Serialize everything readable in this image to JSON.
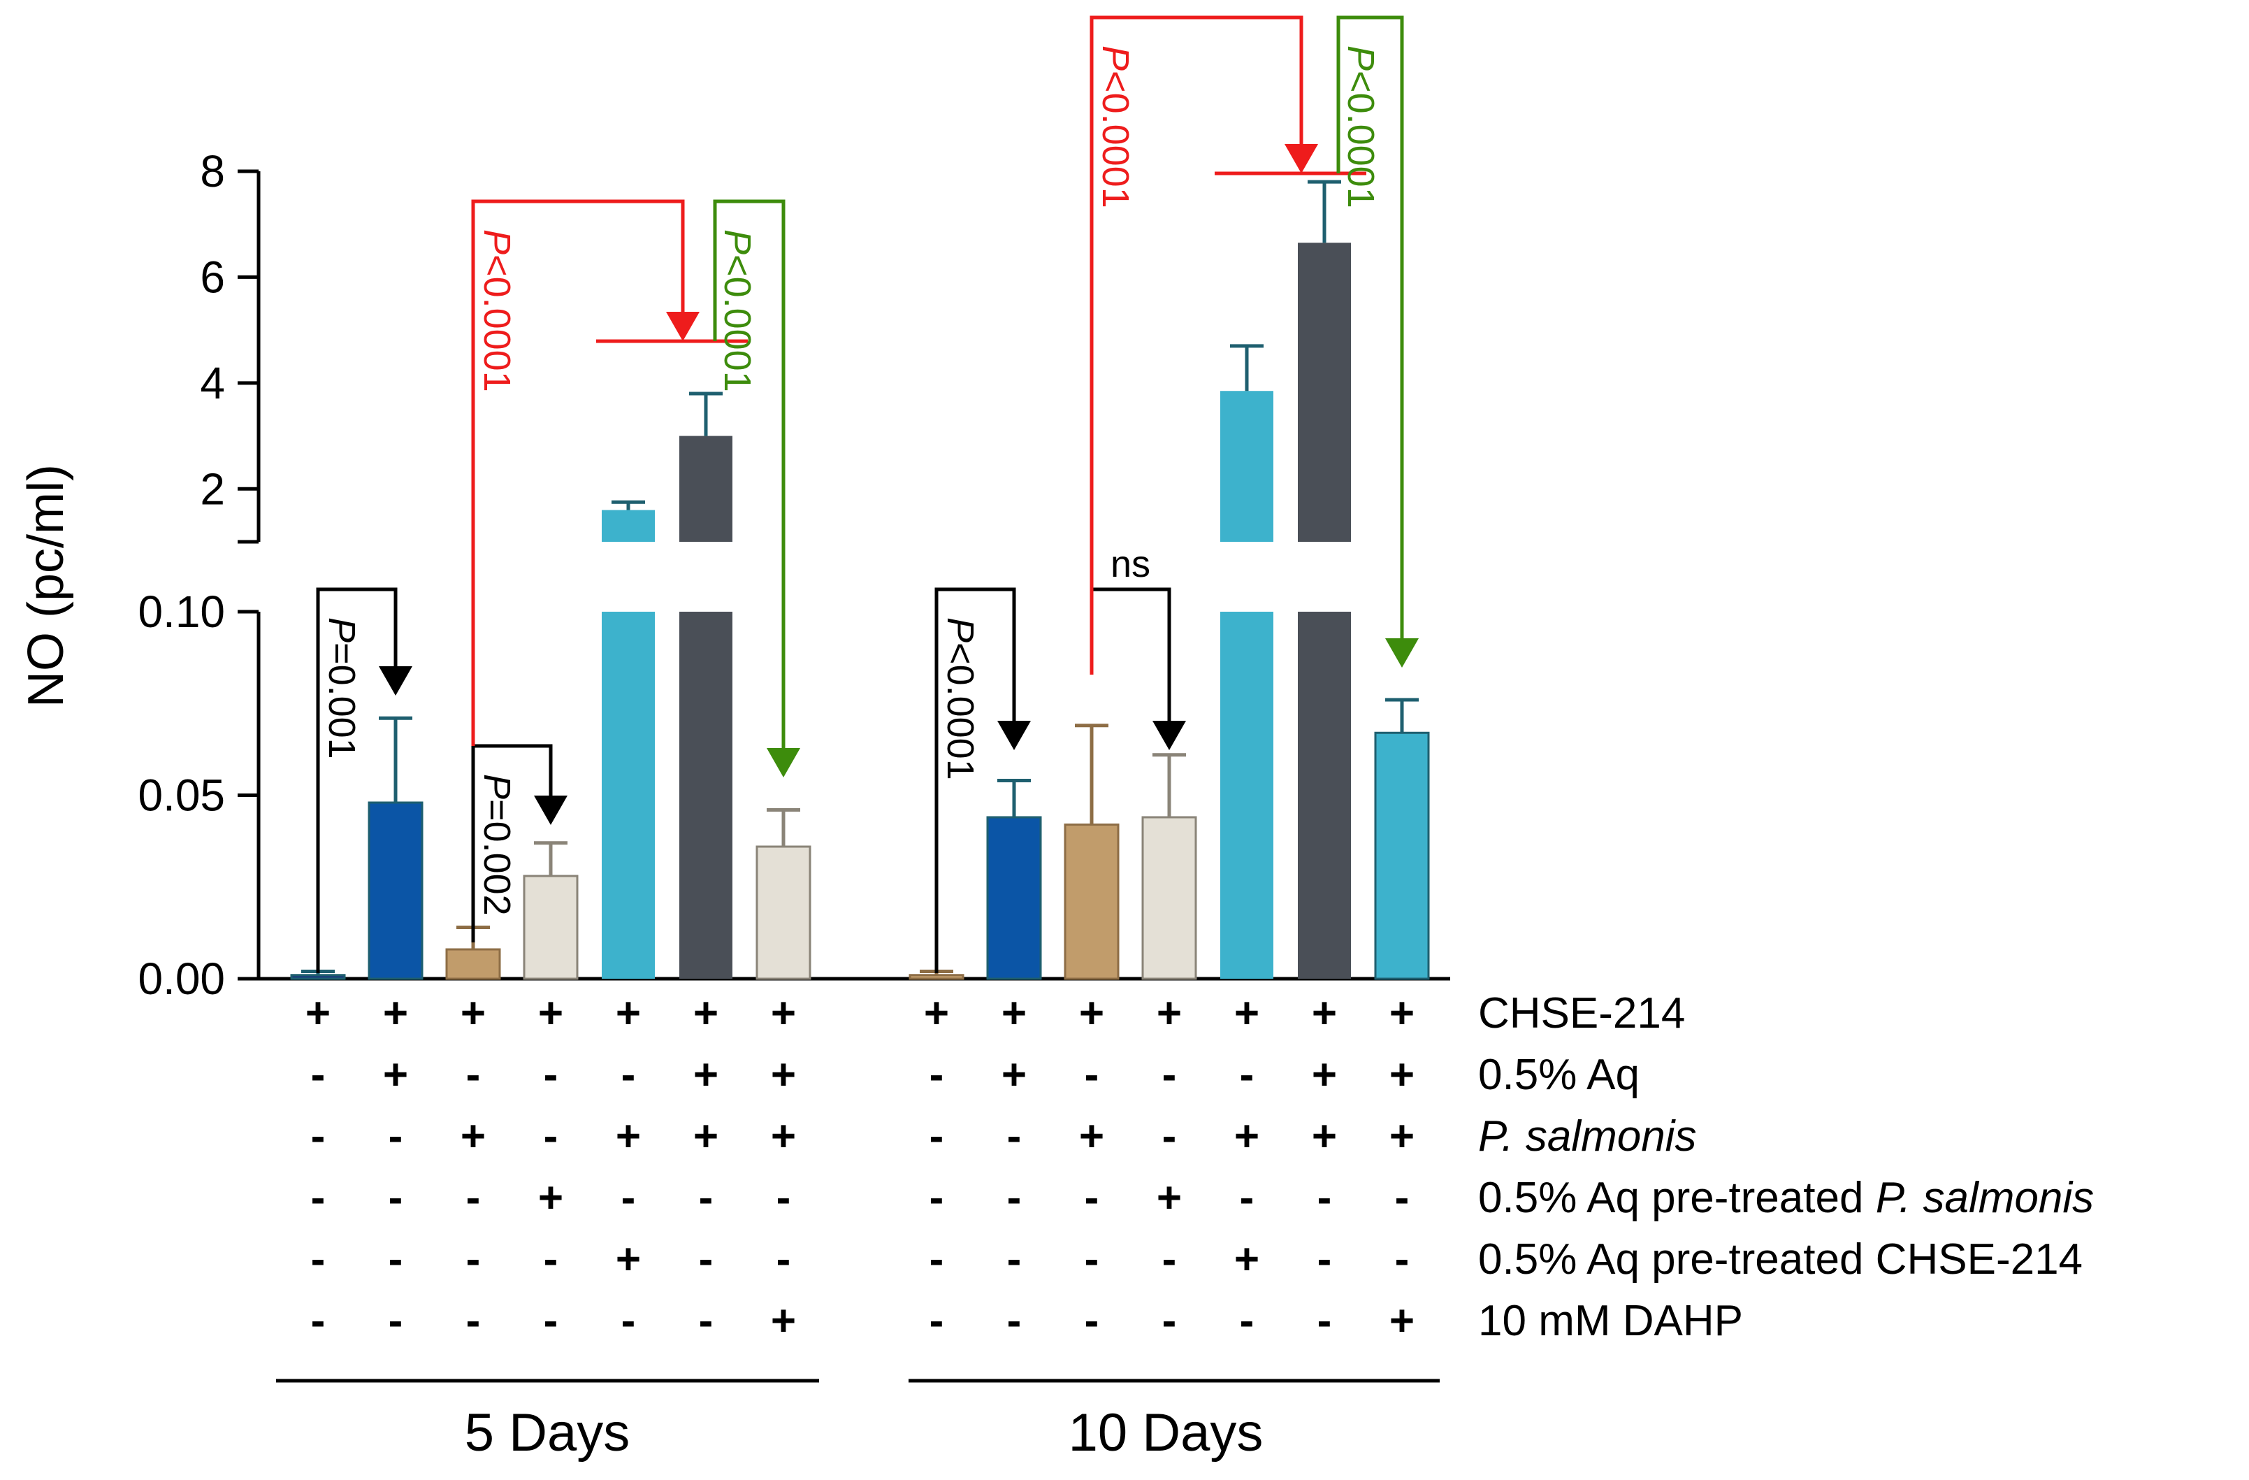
{
  "chart_data": {
    "type": "bar",
    "ylabel": "NO (pc/ml)",
    "y_axis": {
      "lower_segment": {
        "range": [
          0,
          0.1
        ],
        "ticks": [
          "0.00",
          "0.05",
          "0.10"
        ]
      },
      "upper_segment": {
        "range": [
          1,
          8
        ],
        "ticks": [
          "2",
          "4",
          "6",
          "8"
        ]
      }
    },
    "groups": [
      {
        "label": "5 Days",
        "bars": [
          {
            "value": 0.001,
            "error": 0.001,
            "color": "#1a3d7c"
          },
          {
            "value": 0.048,
            "error": 0.023,
            "color": "#0b55a6"
          },
          {
            "value": 0.008,
            "error": 0.006,
            "color": "#c19c6b"
          },
          {
            "value": 0.028,
            "error": 0.009,
            "color": "#e4e0d6"
          },
          {
            "value": 1.6,
            "error": 0.15,
            "color": "#3db2cc"
          },
          {
            "value": 3.0,
            "error": 0.8,
            "color": "#4a4f57"
          },
          {
            "value": 0.036,
            "error": 0.01,
            "color": "#e4e0d6"
          }
        ]
      },
      {
        "label": "10 Days",
        "bars": [
          {
            "value": 0.001,
            "error": 0.001,
            "color": "#c19c6b"
          },
          {
            "value": 0.044,
            "error": 0.01,
            "color": "#0b55a6"
          },
          {
            "value": 0.042,
            "error": 0.027,
            "color": "#c19c6b"
          },
          {
            "value": 0.044,
            "error": 0.017,
            "color": "#e4e0d6"
          },
          {
            "value": 3.85,
            "error": 0.85,
            "color": "#3db2cc"
          },
          {
            "value": 6.65,
            "error": 1.15,
            "color": "#4a4f57"
          },
          {
            "value": 0.067,
            "error": 0.009,
            "color": "#3db2cc"
          }
        ]
      }
    ],
    "conditions": [
      {
        "label": "CHSE-214",
        "italic_part": "",
        "values": [
          "+",
          "+",
          "+",
          "+",
          "+",
          "+",
          "+",
          "+",
          "+",
          "+",
          "+",
          "+",
          "+",
          "+"
        ]
      },
      {
        "label": "0.5% Aq",
        "italic_part": "",
        "values": [
          "-",
          "+",
          "-",
          "-",
          "-",
          "+",
          "+",
          "-",
          "+",
          "-",
          "-",
          "-",
          "+",
          "+"
        ]
      },
      {
        "label": "",
        "italic_part": "P. salmonis",
        "values": [
          "-",
          "-",
          "+",
          "-",
          "+",
          "+",
          "+",
          "-",
          "-",
          "+",
          "-",
          "+",
          "+",
          "+"
        ]
      },
      {
        "label": "0.5% Aq pre-treated ",
        "italic_part": "P. salmonis",
        "values": [
          "-",
          "-",
          "-",
          "+",
          "-",
          "-",
          "-",
          "-",
          "-",
          "-",
          "+",
          "-",
          "-",
          "-"
        ]
      },
      {
        "label": "0.5% Aq pre-treated CHSE-214",
        "italic_part": "",
        "values": [
          "-",
          "-",
          "-",
          "-",
          "+",
          "-",
          "-",
          "-",
          "-",
          "-",
          "-",
          "+",
          "-",
          "-"
        ]
      },
      {
        "label": "10 mM DAHP",
        "italic_part": "",
        "values": [
          "-",
          "-",
          "-",
          "-",
          "-",
          "-",
          "+",
          "-",
          "-",
          "-",
          "-",
          "-",
          "-",
          "+"
        ]
      }
    ],
    "comparisons": [
      {
        "from": 0,
        "to": 1,
        "p_prefix": "P",
        "p_suffix": "=0.001",
        "color": "#000000"
      },
      {
        "from": 2,
        "to": 3,
        "p_prefix": "P",
        "p_suffix": "=0.002",
        "color": "#000000"
      },
      {
        "from": 2,
        "to": 5,
        "p_prefix": "P",
        "p_suffix": "<0.0001",
        "color": "#ee1c1c"
      },
      {
        "from": 5,
        "to": 6,
        "p_prefix": "P",
        "p_suffix": "<0.0001",
        "color": "#3d8c0c"
      },
      {
        "from": 7,
        "to": 8,
        "p_prefix": "P",
        "p_suffix": "<0.0001",
        "color": "#000000"
      },
      {
        "from": 9,
        "to": 10,
        "p_prefix": "",
        "p_suffix": "ns",
        "color": "#000000"
      },
      {
        "from": 9,
        "to": 12,
        "p_prefix": "P",
        "p_suffix": "<0.0001",
        "color": "#ee1c1c"
      },
      {
        "from": 12,
        "to": 13,
        "p_prefix": "P",
        "p_suffix": "<0.0001",
        "color": "#3d8c0c"
      }
    ]
  }
}
